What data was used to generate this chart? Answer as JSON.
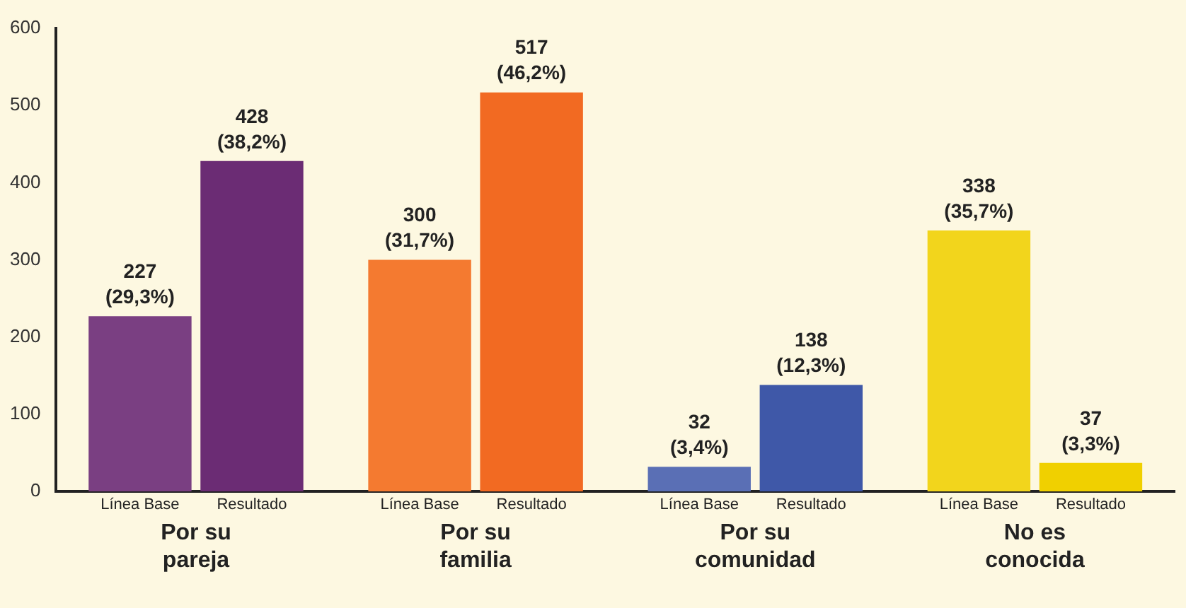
{
  "chart_data": {
    "type": "bar",
    "categories": [
      "Por su pareja",
      "Por su familia",
      "Por su comunidad",
      "No es conocida"
    ],
    "series": [
      {
        "name": "Línea Base",
        "colors": [
          "#7a3f82",
          "#f47a30",
          "#5a6fb5",
          "#f2d51c"
        ],
        "values": [
          227,
          300,
          32,
          338
        ],
        "value_labels": [
          "227\n(29,3%)",
          "300\n(31,7%)",
          "32\n(3,4%)",
          "338\n(35,7%)"
        ]
      },
      {
        "name": "Resultado",
        "colors": [
          "#6b2c74",
          "#f26a22",
          "#3f58a8",
          "#f0d000"
        ],
        "values": [
          428,
          517,
          138,
          37
        ],
        "value_labels": [
          "428\n(38,2%)",
          "517\n(46,2%)",
          "138\n(12,3%)",
          "37\n(3,3%)"
        ]
      }
    ],
    "ylim": [
      0,
      600
    ],
    "yticks": [
      0,
      100,
      200,
      300,
      400,
      500,
      600
    ],
    "grid": false,
    "legend": false
  }
}
